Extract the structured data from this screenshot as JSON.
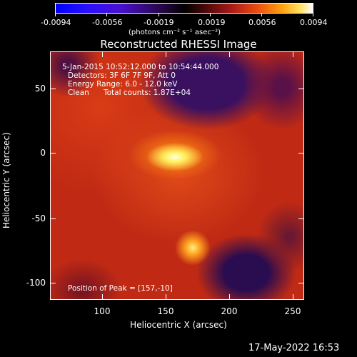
{
  "colorbar": {
    "tick_labels": [
      "-0.0094",
      "-0.0056",
      "-0.0019",
      "0.0019",
      "0.0056",
      "0.0094"
    ],
    "unit_label": "(photons cm⁻² s⁻¹ asec⁻²)"
  },
  "title": "Reconstructed RHESSI Image",
  "annotations": {
    "time_range": "5-Jan-2015 10:52:12.000 to 10:54:44.000",
    "detectors": "Detectors: 3F 6F 7F 9F, Att 0",
    "energy_range": "Energy Range: 6.0 - 12.0 keV",
    "algorithm": "Clean",
    "total_counts": "Total counts: 1.87E+04",
    "peak": "Position of Peak = [157,-10]"
  },
  "axes": {
    "xlabel": "Heliocentric X (arcsec)",
    "ylabel": "Heliocentric Y (arcsec)",
    "x_ticks": [
      "100",
      "150",
      "200",
      "250"
    ],
    "y_ticks": [
      "50",
      "0",
      "-50",
      "-100"
    ]
  },
  "timestamp": "17-May-2022 16:53"
}
